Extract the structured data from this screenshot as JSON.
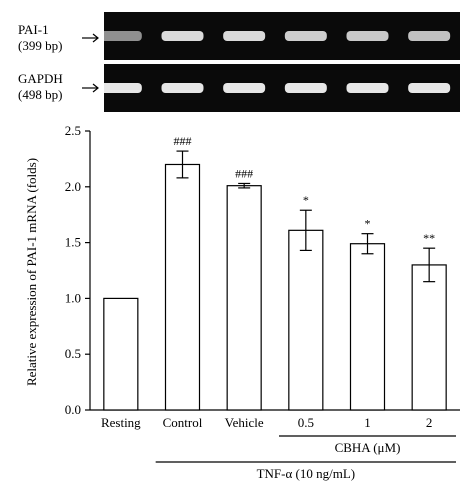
{
  "gel": {
    "rows": [
      {
        "name": "PAI-1",
        "size": "(399 bp)",
        "band_intensity": [
          0.55,
          0.85,
          0.85,
          0.8,
          0.78,
          0.75
        ]
      },
      {
        "name": "GAPDH",
        "size": "(498 bp)",
        "band_intensity": [
          0.9,
          0.9,
          0.9,
          0.9,
          0.9,
          0.9
        ]
      }
    ]
  },
  "chart_data": {
    "type": "bar",
    "categories": [
      "Resting",
      "Control",
      "Vehicle",
      "0.5",
      "1",
      "2"
    ],
    "values": [
      1.0,
      2.2,
      2.01,
      1.61,
      1.49,
      1.3
    ],
    "errors": [
      0.0,
      0.12,
      0.02,
      0.18,
      0.09,
      0.15
    ],
    "annotations": [
      "",
      "###",
      "###",
      "*",
      "*",
      "**"
    ],
    "ylabel": "Relative expression of PAI-1 mRNA (folds)",
    "ylim": [
      0,
      2.5
    ],
    "yticks": [
      "0.0",
      "0.5",
      "1.0",
      "1.5",
      "2.0",
      "2.5"
    ],
    "grid": false,
    "group_labels": [
      {
        "text": "CBHA (μM)",
        "from": 3,
        "to": 5
      },
      {
        "text": "TNF-α (10 ng/mL)",
        "from": 1,
        "to": 5
      }
    ]
  }
}
